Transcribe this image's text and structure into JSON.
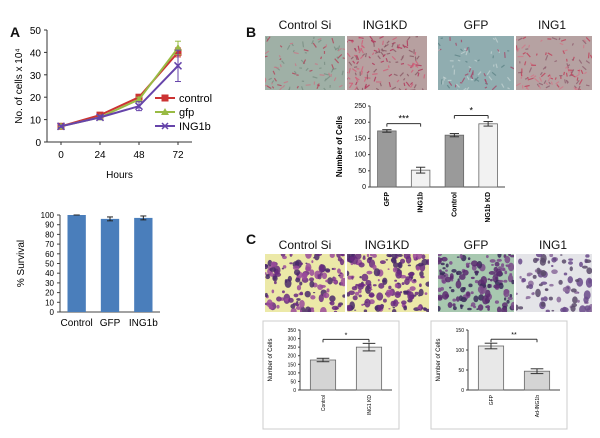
{
  "panels": {
    "a": "A",
    "b": "B",
    "c": "C"
  },
  "a_line": {
    "chart_data": {
      "type": "line",
      "xlabel": "Hours",
      "ylabel": "No. of cells x 10⁴",
      "x": [
        0,
        24,
        48,
        72
      ],
      "ylim": [
        0,
        50
      ],
      "yticks": [
        0,
        10,
        20,
        30,
        40,
        50
      ],
      "series": [
        {
          "name": "control",
          "values": [
            7,
            12,
            20,
            40
          ],
          "errors": [
            0.5,
            0.8,
            1,
            2
          ],
          "color": "#cc3333",
          "marker": "square"
        },
        {
          "name": "gfp",
          "values": [
            7,
            11,
            19,
            42
          ],
          "errors": [
            0.5,
            0.8,
            1,
            3
          ],
          "color": "#99bb44",
          "marker": "triangle"
        },
        {
          "name": "ING1b",
          "values": [
            7,
            11,
            16,
            34
          ],
          "errors": [
            0.5,
            1,
            2,
            7
          ],
          "color": "#6644aa",
          "marker": "x"
        }
      ],
      "legend": "right"
    }
  },
  "a_bar": {
    "chart_data": {
      "type": "bar",
      "categories": [
        "Control",
        "GFP",
        "ING1b"
      ],
      "values": [
        100,
        96,
        97
      ],
      "errors": [
        0,
        2,
        2
      ],
      "ylabel": "% Survival",
      "ylim": [
        0,
        100
      ],
      "yticks": [
        0,
        10,
        20,
        30,
        40,
        50,
        60,
        70,
        80,
        90,
        100
      ],
      "color": "#4a7ebb"
    }
  },
  "b_images": {
    "labels": [
      "Control Si",
      "ING1KD",
      "GFP",
      "ING1"
    ]
  },
  "b_bar": {
    "chart_data": {
      "type": "bar",
      "categories": [
        "GFP",
        "ING1b",
        "Control",
        "ING1b KD"
      ],
      "values": [
        173,
        52,
        160,
        195
      ],
      "errors": [
        4,
        9,
        5,
        7
      ],
      "ylabel": "Number of Cells",
      "ylim": [
        0,
        250
      ],
      "yticks": [
        0,
        50,
        100,
        150,
        200,
        250
      ],
      "significance": [
        {
          "pair": [
            0,
            1
          ],
          "label": "***"
        },
        {
          "pair": [
            2,
            3
          ],
          "label": "*"
        }
      ]
    }
  },
  "c_images": {
    "labels": [
      "Control Si",
      "ING1KD",
      "GFP",
      "ING1"
    ]
  },
  "c_bar_left": {
    "chart_data": {
      "type": "bar",
      "categories": [
        "Control",
        "ING1 KD"
      ],
      "values": [
        175,
        250
      ],
      "errors": [
        10,
        22
      ],
      "ylabel": "Number of Cells",
      "ylim": [
        0,
        350
      ],
      "yticks": [
        0,
        50,
        100,
        150,
        200,
        250,
        300,
        350
      ],
      "significance": [
        {
          "pair": [
            0,
            1
          ],
          "label": "*"
        }
      ]
    }
  },
  "c_bar_right": {
    "chart_data": {
      "type": "bar",
      "categories": [
        "GFP",
        "Ad-ING1b"
      ],
      "values": [
        110,
        47
      ],
      "errors": [
        7,
        6
      ],
      "ylabel": "Number of Cells",
      "ylim": [
        0,
        150
      ],
      "yticks": [
        0,
        50,
        100,
        150
      ],
      "significance": [
        {
          "pair": [
            0,
            1
          ],
          "label": "**"
        }
      ]
    }
  }
}
